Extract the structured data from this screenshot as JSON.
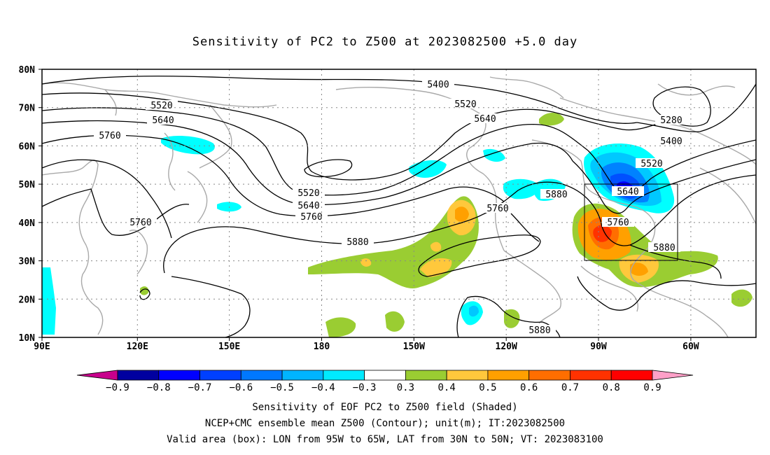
{
  "title": "Sensitivity of PC2 to Z500 at 2023082500 +5.0 day",
  "map": {
    "lat_labels": [
      "80N",
      "70N",
      "60N",
      "50N",
      "40N",
      "30N",
      "20N",
      "10N"
    ],
    "lon_labels": [
      "90E",
      "120E",
      "150E",
      "180",
      "150W",
      "120W",
      "90W",
      "60W"
    ],
    "box": {
      "lon_from": "95W",
      "lon_to": "65W",
      "lat_from": "30N",
      "lat_to": "50N"
    },
    "contour_labels": [
      "5400",
      "5520",
      "5640",
      "5760",
      "5520",
      "5640",
      "5280",
      "5400",
      "5520",
      "5520",
      "5640",
      "5760",
      "5640",
      "5880",
      "5760",
      "5880",
      "5760",
      "5760",
      "5880",
      "5880"
    ],
    "colors": {
      "coast": "#a9a9a9",
      "contour": "#000000",
      "pos_03": "#9acd32",
      "pos_04": "#ffc83c",
      "pos_05": "#ffa000",
      "pos_06": "#ff6e00",
      "pos_07": "#ff3200",
      "neg_03": "#00ffff",
      "neg_04": "#00c8ff",
      "neg_05": "#0082ff",
      "neg_06": "#0050ff",
      "neg_07": "#0000ff"
    }
  },
  "colorbar": {
    "labels": [
      "−0.9",
      "−0.8",
      "−0.7",
      "−0.6",
      "−0.5",
      "−0.4",
      "−0.3",
      "0.3",
      "0.4",
      "0.5",
      "0.6",
      "0.7",
      "0.8",
      "0.9"
    ],
    "colors": [
      "#c8008c",
      "#0000a0",
      "#0000ff",
      "#0040ff",
      "#0078ff",
      "#00b4ff",
      "#00eaff",
      "#ffffff",
      "#9acd32",
      "#ffc83c",
      "#ffa000",
      "#ff6e00",
      "#ff3200",
      "#ff0000",
      "#ffa0c8"
    ]
  },
  "captions": [
    "Sensitivity of EOF PC2 to Z500 field (Shaded)",
    "NCEP+CMC ensemble mean Z500 (Contour); unit(m); IT:2023082500",
    "Valid area (box): LON from 95W to 65W, LAT from 30N to 50N; VT: 2023083100"
  ]
}
